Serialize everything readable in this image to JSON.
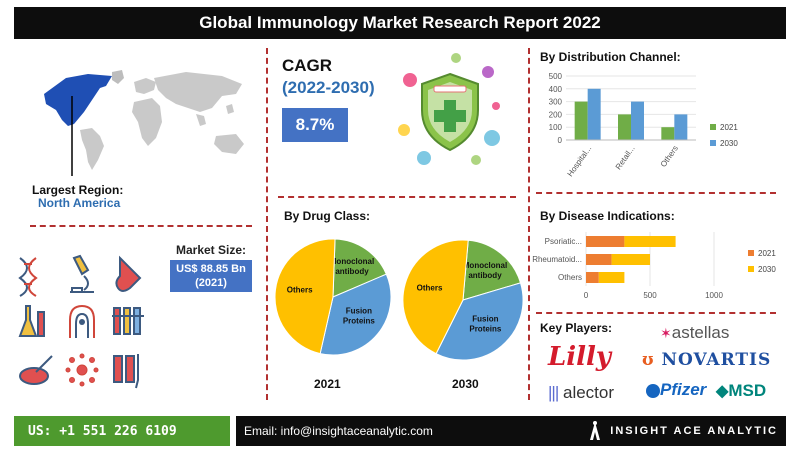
{
  "title": "Global Immunology Market Research Report 2022",
  "largest_region": {
    "label": "Largest Region:",
    "value": "North America"
  },
  "market_size": {
    "label": "Market Size:",
    "value_line1": "US$ 88.85 Bn",
    "value_line2": "(2021)"
  },
  "cagr": {
    "title": "CAGR",
    "period": "(2022-2030)",
    "value": "8.7%"
  },
  "drug_class": {
    "title": "By Drug Class:",
    "year1": "2021",
    "year2": "2030"
  },
  "distribution": {
    "title": "By Distribution Channel:"
  },
  "disease": {
    "title": "By Disease Indications:"
  },
  "key_players": {
    "title": "Key Players:",
    "names": [
      "astellas",
      "Lilly",
      "NOVARTIS",
      "alector",
      "Pfizer",
      "MSD"
    ]
  },
  "footer": {
    "phone": "US: +1 551 226 6109",
    "email": "Email: info@insightaceanalytic.com",
    "brand": "INSIGHT ACE ANALYTIC"
  },
  "colors": {
    "blue": "#5b9bd5",
    "green": "#70ad47",
    "orange": "#ed7d31",
    "yellow": "#ffc000",
    "accent": "#4472c4"
  },
  "icons": [
    "dna-icon",
    "microscope-icon",
    "test-tube-icon",
    "flask-icon",
    "virus-person-icon",
    "test-tubes-rack-icon",
    "petri-dish-icon",
    "cells-icon",
    "syringe-vials-icon"
  ],
  "chart_data": [
    {
      "type": "bar",
      "title": "By Distribution Channel:",
      "categories": [
        "Hospital...",
        "Retail...",
        "Others"
      ],
      "series": [
        {
          "name": "2021",
          "color": "#70ad47",
          "values": [
            300,
            200,
            100
          ]
        },
        {
          "name": "2030",
          "color": "#5b9bd5",
          "values": [
            400,
            300,
            200
          ]
        }
      ],
      "ylim": [
        0,
        500
      ],
      "yticks": [
        "0",
        "100",
        "200",
        "300",
        "400",
        "500"
      ],
      "legend": "right"
    },
    {
      "type": "bar",
      "orientation": "horizontal",
      "stacked": true,
      "title": "By Disease Indications:",
      "categories": [
        "Psoriatic...",
        "Rheumatoid...",
        "Others"
      ],
      "series": [
        {
          "name": "2021",
          "color": "#ed7d31",
          "values": [
            300,
            200,
            100
          ]
        },
        {
          "name": "2030",
          "color": "#ffc000",
          "values": [
            400,
            300,
            200
          ]
        }
      ],
      "xlim": [
        0,
        1000
      ],
      "xticks": [
        "0",
        "500",
        "1000"
      ],
      "legend": "right"
    },
    {
      "type": "pie",
      "title": "2021",
      "slices": [
        {
          "label": "Monoclonal antibody",
          "value": 18,
          "color": "#70ad47"
        },
        {
          "label": "Fusion Proteins",
          "value": 35,
          "color": "#5b9bd5"
        },
        {
          "label": "Others",
          "value": 47,
          "color": "#ffc000"
        }
      ]
    },
    {
      "type": "pie",
      "title": "2030",
      "slices": [
        {
          "label": "Monoclonal antibody",
          "value": 19,
          "color": "#70ad47"
        },
        {
          "label": "Fusion Proteins",
          "value": 37,
          "color": "#5b9bd5"
        },
        {
          "label": "Others",
          "value": 44,
          "color": "#ffc000"
        }
      ]
    }
  ]
}
